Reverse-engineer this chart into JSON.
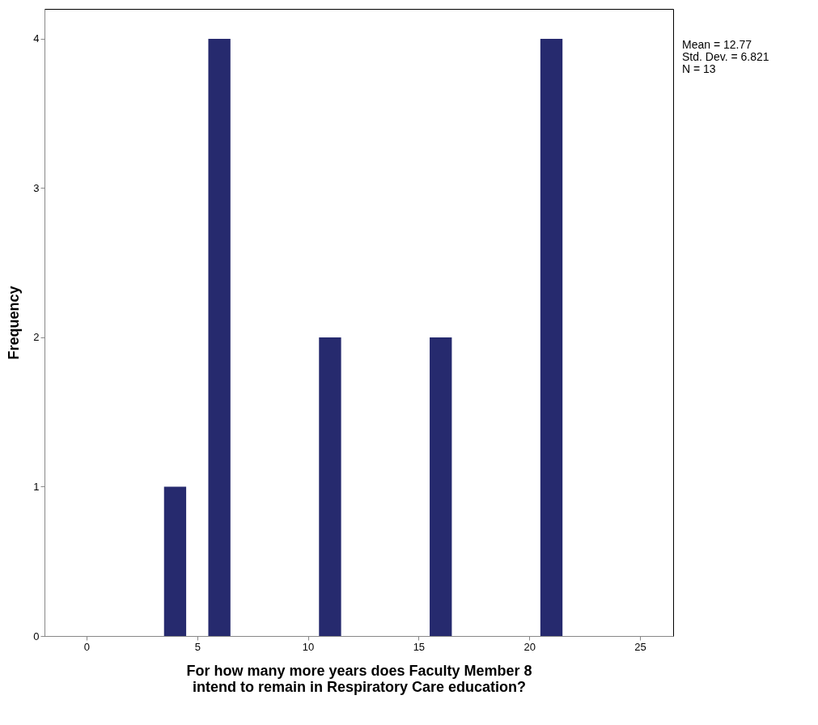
{
  "chart_data": {
    "type": "histogram",
    "xlabel": "For how many more years does Faculty Member 8 intend to remain in Respiratory Care education?",
    "ylabel": "Frequency",
    "bins": [
      3.5,
      4.5,
      5.5,
      6.5,
      7.5,
      8.5,
      9.5,
      10.5,
      11.5,
      12.5,
      13.5,
      14.5,
      15.5,
      16.5,
      17.5,
      18.5,
      19.5,
      20.5,
      21.5
    ],
    "values": [
      1,
      0,
      4,
      0,
      0,
      0,
      0,
      2,
      0,
      0,
      0,
      0,
      2,
      0,
      0,
      0,
      0,
      4
    ],
    "color": "#262a6e",
    "xlim": [
      -1.9,
      26.5
    ],
    "xticks": [
      0,
      5,
      10,
      15,
      20,
      25
    ],
    "ylim": [
      0,
      4.2
    ],
    "yticks": [
      0,
      1,
      2,
      3,
      4
    ],
    "grid": false,
    "annotations": [
      "Mean = 12.77",
      "Std. Dev. = 6.821",
      "N = 13"
    ]
  }
}
